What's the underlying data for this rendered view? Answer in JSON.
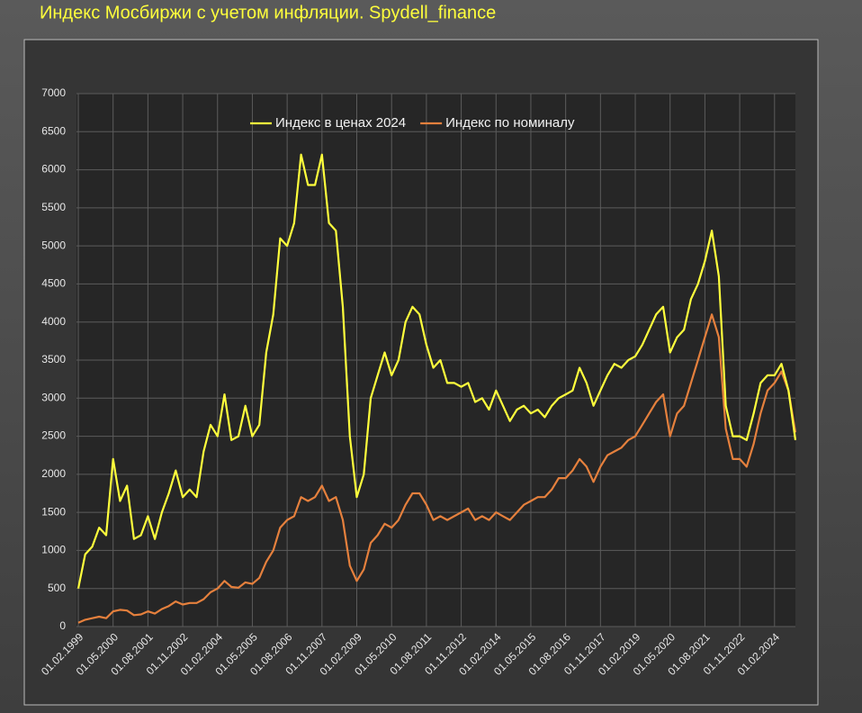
{
  "chart_data": {
    "type": "line",
    "title": "Индекс Мосбиржи с учетом инфляции. Spydell_finance",
    "categories": [
      "01.02.1999",
      null,
      null,
      null,
      null,
      "01.05.2000",
      null,
      null,
      null,
      null,
      "01.08.2001",
      null,
      null,
      null,
      null,
      "01.11.2002",
      null,
      null,
      null,
      null,
      "01.02.2004",
      null,
      null,
      null,
      null,
      "01.05.2005",
      null,
      null,
      null,
      null,
      "01.08.2006",
      null,
      null,
      null,
      null,
      "01.11.2007",
      null,
      null,
      null,
      null,
      "01.02.2009",
      null,
      null,
      null,
      null,
      "01.05.2010",
      null,
      null,
      null,
      null,
      "01.08.2011",
      null,
      null,
      null,
      null,
      "01.11.2012",
      null,
      null,
      null,
      null,
      "01.02.2014",
      null,
      null,
      null,
      null,
      "01.05.2015",
      null,
      null,
      null,
      null,
      "01.08.2016",
      null,
      null,
      null,
      null,
      "01.11.2017",
      null,
      null,
      null,
      null,
      "01.02.2019",
      null,
      null,
      null,
      null,
      "01.05.2020",
      null,
      null,
      null,
      null,
      "01.08.2021",
      null,
      null,
      null,
      null,
      "01.11.2022",
      null,
      null,
      null,
      null,
      "01.02.2024",
      null,
      null,
      null
    ],
    "series": [
      {
        "name": "Индекс в ценах 2024",
        "color": "#ffff3c",
        "values": [
          500,
          950,
          1050,
          1300,
          1200,
          2200,
          1650,
          1850,
          1150,
          1200,
          1450,
          1150,
          1500,
          1750,
          2050,
          1700,
          1800,
          1700,
          2300,
          2650,
          2500,
          3050,
          2450,
          2500,
          2900,
          2500,
          2650,
          3600,
          4100,
          5100,
          5000,
          5300,
          6200,
          5800,
          5800,
          6200,
          5300,
          5200,
          4200,
          2500,
          1700,
          2000,
          3000,
          3300,
          3600,
          3300,
          3500,
          4000,
          4200,
          4100,
          3700,
          3400,
          3500,
          3200,
          3200,
          3150,
          3200,
          2950,
          3000,
          2850,
          3100,
          2900,
          2700,
          2850,
          2900,
          2800,
          2850,
          2750,
          2900,
          3000,
          3050,
          3100,
          3400,
          3200,
          2900,
          3100,
          3300,
          3450,
          3400,
          3500,
          3550,
          3700,
          3900,
          4100,
          4200,
          3600,
          3800,
          3900,
          4300,
          4500,
          4800,
          5200,
          4600,
          2900,
          2500,
          2500,
          2450,
          2800,
          3200,
          3300,
          3300,
          3450,
          3100,
          2450
        ]
      },
      {
        "name": "Индекс по номиналу",
        "color": "#e5803d",
        "values": [
          50,
          90,
          110,
          130,
          110,
          200,
          220,
          210,
          150,
          160,
          200,
          170,
          230,
          270,
          330,
          290,
          310,
          310,
          360,
          450,
          500,
          600,
          520,
          510,
          580,
          560,
          640,
          850,
          1000,
          1300,
          1400,
          1450,
          1700,
          1650,
          1700,
          1850,
          1650,
          1700,
          1400,
          800,
          600,
          750,
          1100,
          1200,
          1350,
          1300,
          1400,
          1600,
          1750,
          1750,
          1600,
          1400,
          1450,
          1400,
          1450,
          1500,
          1550,
          1400,
          1450,
          1400,
          1500,
          1450,
          1400,
          1500,
          1600,
          1650,
          1700,
          1700,
          1800,
          1950,
          1950,
          2050,
          2200,
          2100,
          1900,
          2100,
          2250,
          2300,
          2350,
          2450,
          2500,
          2650,
          2800,
          2950,
          3050,
          2500,
          2800,
          2900,
          3200,
          3500,
          3800,
          4100,
          3800,
          2600,
          2200,
          2200,
          2100,
          2400,
          2800,
          3100,
          3200,
          3350,
          3100,
          2550
        ]
      }
    ],
    "ylim": [
      0,
      7000
    ],
    "yticks": [
      0,
      500,
      1000,
      1500,
      2000,
      2500,
      3000,
      3500,
      4000,
      4500,
      5000,
      5500,
      6000,
      6500,
      7000
    ],
    "grid": true,
    "legend": "top"
  }
}
